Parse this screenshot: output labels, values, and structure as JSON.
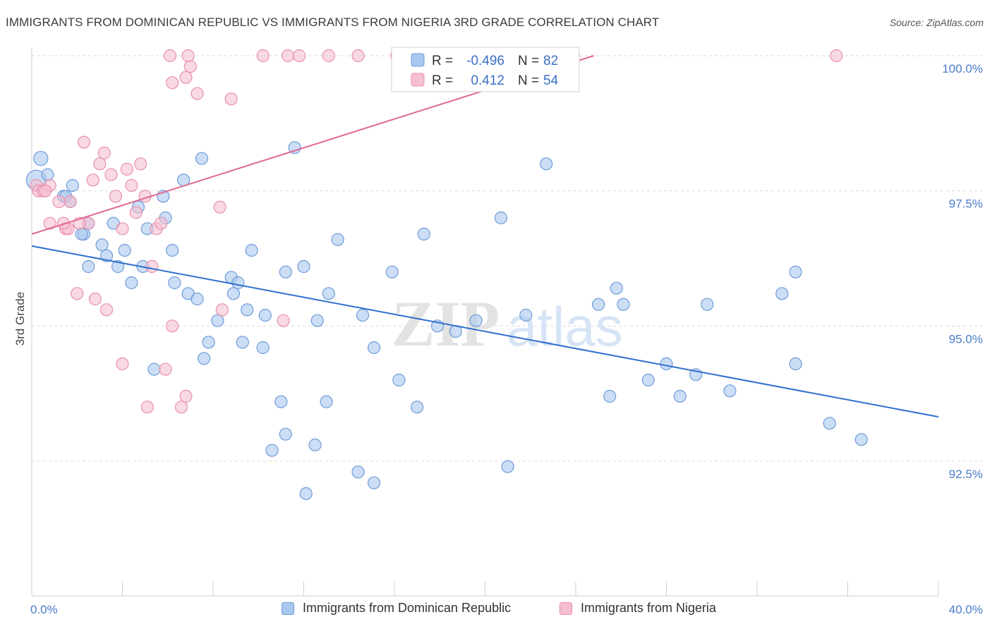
{
  "title": "IMMIGRANTS FROM DOMINICAN REPUBLIC VS IMMIGRANTS FROM NIGERIA 3RD GRADE CORRELATION CHART",
  "source": "Source: ZipAtlas.com",
  "watermark": {
    "zip": "ZIP",
    "atlas": "atlas"
  },
  "colors": {
    "blue_fill": "#a9c8ef",
    "blue_stroke": "#6f9bd8",
    "blue_line": "#2f6fcf",
    "pink_fill": "#f5bfd0",
    "pink_stroke": "#e88fac",
    "pink_line": "#e06a92",
    "tick_text": "#4a7cc9",
    "grid": "#d9d9d9"
  },
  "legend": {
    "rows": [
      {
        "r_label": "R =",
        "r_value": "-0.496",
        "n_label": "N =",
        "n_value": "82"
      },
      {
        "r_label": "R =",
        "r_value": "0.412",
        "n_label": "N =",
        "n_value": "54"
      }
    ]
  },
  "chart_data": {
    "type": "scatter",
    "title": "IMMIGRANTS FROM DOMINICAN REPUBLIC VS IMMIGRANTS FROM NIGERIA 3RD GRADE CORRELATION CHART",
    "xlabel": "",
    "ylabel": "3rd Grade",
    "xlim": [
      0,
      40
    ],
    "ylim": [
      90.2,
      100.3
    ],
    "x_tick_labels": [
      "0.0%",
      "40.0%"
    ],
    "y_ticks": [
      92.5,
      95.0,
      97.5,
      100.0
    ],
    "y_tick_labels": [
      "92.5%",
      "95.0%",
      "97.5%",
      "100.0%"
    ],
    "grid": true,
    "legend_position": "top-center",
    "series": [
      {
        "name": "Immigrants from Dominican Republic",
        "color": "#a9c8ef",
        "trend": {
          "x": [
            0,
            40
          ],
          "y": [
            96.48,
            93.32
          ]
        },
        "points": [
          [
            0.4,
            98.1
          ],
          [
            0.2,
            97.7
          ],
          [
            0.7,
            97.8
          ],
          [
            1.8,
            97.6
          ],
          [
            1.4,
            97.4
          ],
          [
            1.5,
            97.4
          ],
          [
            1.7,
            97.3
          ],
          [
            2.5,
            96.9
          ],
          [
            2.3,
            96.7
          ],
          [
            2.2,
            96.7
          ],
          [
            3.1,
            96.5
          ],
          [
            3.6,
            96.9
          ],
          [
            4.1,
            96.4
          ],
          [
            4.7,
            97.2
          ],
          [
            5.1,
            96.8
          ],
          [
            5.8,
            97.4
          ],
          [
            5.9,
            97.0
          ],
          [
            6.7,
            97.7
          ],
          [
            7.5,
            98.1
          ],
          [
            6.2,
            96.4
          ],
          [
            2.5,
            96.1
          ],
          [
            3.3,
            96.3
          ],
          [
            3.8,
            96.1
          ],
          [
            4.4,
            95.8
          ],
          [
            4.9,
            96.1
          ],
          [
            6.3,
            95.8
          ],
          [
            6.9,
            95.6
          ],
          [
            7.3,
            95.5
          ],
          [
            8.8,
            95.9
          ],
          [
            8.9,
            95.6
          ],
          [
            9.1,
            95.8
          ],
          [
            9.7,
            96.4
          ],
          [
            11.2,
            96.0
          ],
          [
            12.0,
            96.1
          ],
          [
            13.5,
            96.6
          ],
          [
            11.6,
            98.3
          ],
          [
            15.9,
            96.0
          ],
          [
            17.3,
            96.7
          ],
          [
            20.7,
            97.0
          ],
          [
            22.7,
            98.0
          ],
          [
            8.2,
            95.1
          ],
          [
            9.5,
            95.3
          ],
          [
            10.3,
            95.2
          ],
          [
            12.6,
            95.1
          ],
          [
            13.1,
            95.6
          ],
          [
            14.6,
            95.2
          ],
          [
            17.9,
            95.0
          ],
          [
            18.7,
            94.9
          ],
          [
            19.6,
            95.1
          ],
          [
            21.8,
            95.2
          ],
          [
            7.8,
            94.7
          ],
          [
            9.3,
            94.7
          ],
          [
            10.2,
            94.6
          ],
          [
            15.1,
            94.6
          ],
          [
            7.6,
            94.4
          ],
          [
            5.4,
            94.2
          ],
          [
            16.2,
            94.0
          ],
          [
            17.0,
            93.5
          ],
          [
            11.0,
            93.6
          ],
          [
            13.0,
            93.6
          ],
          [
            11.2,
            93.0
          ],
          [
            10.6,
            92.7
          ],
          [
            12.5,
            92.8
          ],
          [
            14.4,
            92.3
          ],
          [
            15.1,
            92.1
          ],
          [
            12.1,
            91.9
          ],
          [
            21.0,
            92.4
          ],
          [
            25.0,
            95.4
          ],
          [
            25.8,
            95.7
          ],
          [
            26.1,
            95.4
          ],
          [
            27.2,
            94.0
          ],
          [
            28.0,
            94.3
          ],
          [
            29.8,
            95.4
          ],
          [
            28.6,
            93.7
          ],
          [
            29.3,
            94.1
          ],
          [
            30.8,
            93.8
          ],
          [
            33.1,
            95.6
          ],
          [
            33.7,
            96.0
          ],
          [
            33.7,
            94.3
          ],
          [
            35.2,
            93.2
          ],
          [
            36.6,
            92.9
          ],
          [
            25.5,
            93.7
          ]
        ]
      },
      {
        "name": "Immigrants from Nigeria",
        "color": "#f5bfd0",
        "trend": {
          "x": [
            0,
            24.8
          ],
          "y": [
            96.7,
            100.0
          ]
        },
        "points": [
          [
            0.2,
            97.6
          ],
          [
            0.3,
            97.5
          ],
          [
            0.5,
            97.5
          ],
          [
            0.8,
            97.6
          ],
          [
            1.2,
            97.3
          ],
          [
            1.7,
            97.3
          ],
          [
            0.8,
            96.9
          ],
          [
            1.5,
            96.8
          ],
          [
            1.6,
            96.8
          ],
          [
            2.5,
            96.9
          ],
          [
            2.3,
            98.4
          ],
          [
            2.7,
            97.7
          ],
          [
            3.0,
            98.0
          ],
          [
            3.2,
            98.2
          ],
          [
            3.5,
            97.8
          ],
          [
            3.7,
            97.4
          ],
          [
            4.0,
            96.8
          ],
          [
            4.2,
            97.9
          ],
          [
            4.4,
            97.6
          ],
          [
            4.6,
            97.1
          ],
          [
            4.8,
            98.0
          ],
          [
            5.0,
            97.4
          ],
          [
            5.3,
            96.1
          ],
          [
            5.5,
            96.8
          ],
          [
            5.7,
            96.9
          ],
          [
            6.2,
            99.5
          ],
          [
            6.8,
            99.6
          ],
          [
            7.0,
            99.8
          ],
          [
            7.3,
            99.3
          ],
          [
            6.1,
            100.0
          ],
          [
            6.9,
            100.0
          ],
          [
            10.2,
            100.0
          ],
          [
            11.3,
            100.0
          ],
          [
            11.8,
            100.0
          ],
          [
            13.1,
            100.0
          ],
          [
            14.4,
            100.0
          ],
          [
            16.1,
            100.0
          ],
          [
            35.5,
            100.0
          ],
          [
            8.8,
            99.2
          ],
          [
            8.3,
            97.2
          ],
          [
            2.0,
            95.6
          ],
          [
            2.8,
            95.5
          ],
          [
            3.3,
            95.3
          ],
          [
            6.2,
            95.0
          ],
          [
            8.4,
            95.3
          ],
          [
            11.1,
            95.1
          ],
          [
            4.0,
            94.3
          ],
          [
            5.9,
            94.2
          ],
          [
            5.1,
            93.5
          ],
          [
            6.8,
            93.7
          ],
          [
            6.6,
            93.5
          ],
          [
            1.4,
            96.9
          ],
          [
            0.6,
            97.5
          ],
          [
            2.1,
            96.9
          ]
        ]
      }
    ]
  }
}
